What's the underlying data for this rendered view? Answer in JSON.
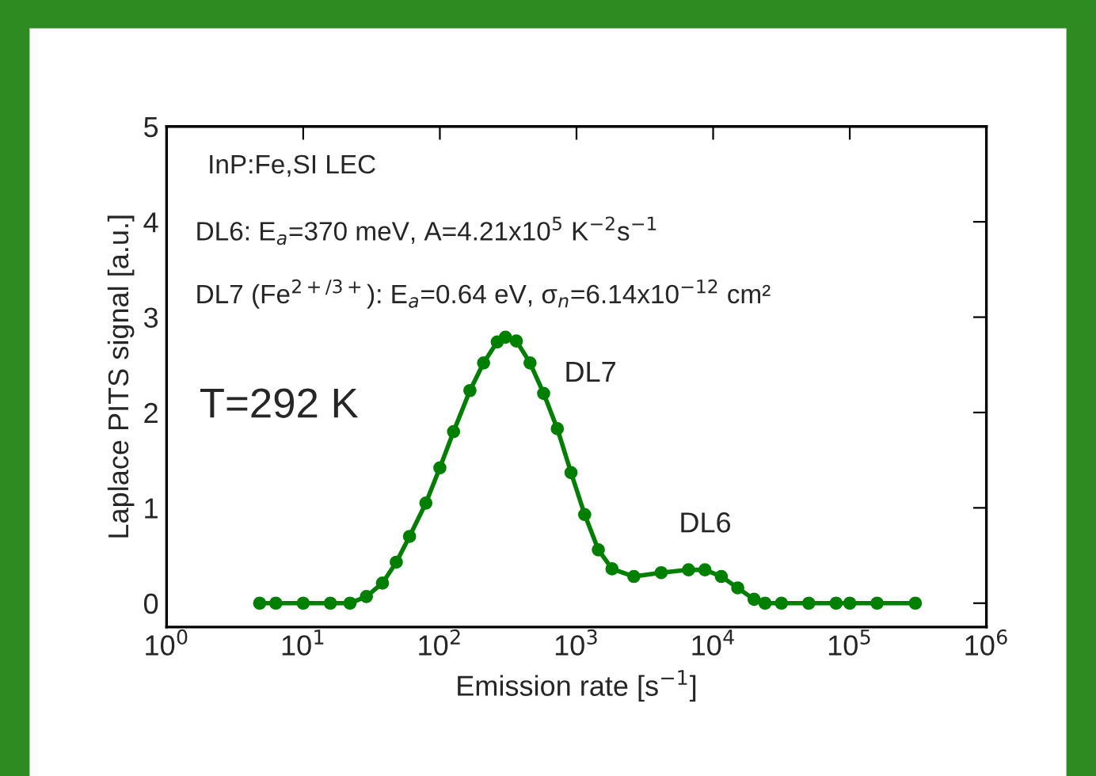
{
  "chart_data": {
    "type": "line",
    "xlabel": "Emission rate [s$^{−1}$]",
    "ylabel": "Laplace PITS signal [a.u.]",
    "x": [
      4.8,
      6.3,
      10,
      15.8,
      22,
      29,
      38,
      48,
      60,
      79,
      100,
      126,
      166,
      209,
      263,
      302,
      363,
      457,
      575,
      724,
      912,
      1148,
      1445,
      1820,
      2630,
      4169,
      6607,
      8710,
      11480,
      15140,
      19950,
      23990,
      31620,
      50120,
      79430,
      100000,
      158500,
      302000
    ],
    "series": [
      {
        "color": "#008000",
        "values": [
          0,
          0,
          0,
          0,
          0,
          0.07,
          0.21,
          0.43,
          0.7,
          1.05,
          1.42,
          1.8,
          2.23,
          2.52,
          2.74,
          2.79,
          2.75,
          2.52,
          2.2,
          1.83,
          1.37,
          0.93,
          0.56,
          0.36,
          0.28,
          0.32,
          0.35,
          0.35,
          0.28,
          0.16,
          0.04,
          0,
          0,
          0,
          0,
          0,
          0,
          0
        ]
      }
    ],
    "log": "x",
    "marker": "circle",
    "line_style": "solid",
    "grid": false,
    "legend": false,
    "xlim": [
      1,
      1000000
    ],
    "ylim": [
      -0.25,
      5
    ],
    "xticks": [
      {
        "value": 1,
        "label": "10$^{0}$"
      },
      {
        "value": 10,
        "label": "10$^{1}$"
      },
      {
        "value": 100,
        "label": "10$^{2}$"
      },
      {
        "value": 1000,
        "label": "10$^{3}$"
      },
      {
        "value": 10000,
        "label": "10$^{4}$"
      },
      {
        "value": 100000,
        "label": "10$^{5}$"
      },
      {
        "value": 1000000,
        "label": "10$^{6}$"
      }
    ],
    "yticks": [
      0,
      1,
      2,
      3,
      4,
      5
    ],
    "annotations": [
      "InP:Fe,SI LEC",
      "DL6: E$_{a}$=370 meV, A=4.21x10$^{5}$ K$^{−2}$s$^{−1}$",
      "DL7 (Fe$^{2+/3+}$): E$_{a}$=0.64 eV, σ$_{n}$=6.14x10$^{−12}$ cm²",
      "T=292 K",
      "DL7",
      "DL6"
    ]
  }
}
